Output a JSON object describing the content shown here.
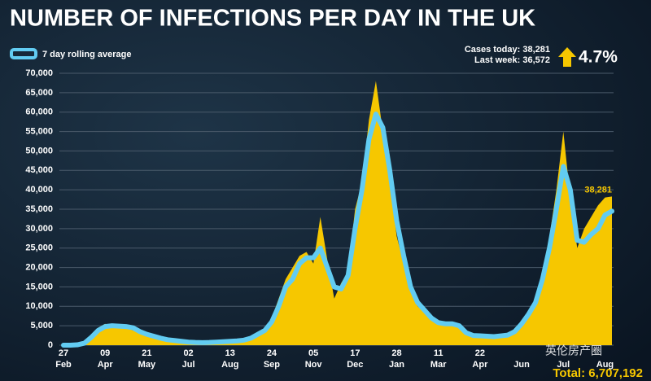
{
  "chart_data": {
    "type": "area-line",
    "title": "NUMBER OF INFECTIONS PER DAY IN THE UK",
    "stats": [
      "Cases today: 38,281",
      "Last week: 36,572"
    ],
    "change": "4.7%",
    "total": "Total: 6,707,192",
    "watermark": "英伦房产圈",
    "categories": [
      {
        "day": "27",
        "month": "Feb"
      },
      null,
      null,
      null,
      null,
      null,
      {
        "day": "09",
        "month": "Apr"
      },
      null,
      null,
      null,
      null,
      null,
      {
        "day": "21",
        "month": "May"
      },
      null,
      null,
      null,
      null,
      null,
      {
        "day": "02",
        "month": "Jul"
      },
      null,
      null,
      null,
      null,
      null,
      {
        "day": "13",
        "month": "Aug"
      },
      null,
      null,
      null,
      null,
      null,
      {
        "day": "24",
        "month": "Sep"
      },
      null,
      null,
      null,
      null,
      null,
      {
        "day": "05",
        "month": "Nov"
      },
      null,
      null,
      null,
      null,
      null,
      {
        "day": "17",
        "month": "Dec"
      },
      null,
      null,
      null,
      null,
      null,
      {
        "day": "28",
        "month": "Jan"
      },
      null,
      null,
      null,
      null,
      null,
      {
        "day": "11",
        "month": "Mar"
      },
      null,
      null,
      null,
      null,
      null,
      {
        "day": "22",
        "month": "Apr"
      },
      null,
      null,
      null,
      null,
      null,
      {
        "month": "Jun"
      },
      null,
      null,
      null,
      null,
      null,
      {
        "month": "Jul"
      },
      null,
      null,
      null,
      null,
      null,
      {
        "month": "Aug"
      },
      null
    ],
    "series": [
      {
        "color": "#f6c700",
        "kind": "area",
        "values": [
          0,
          0,
          150,
          600,
          2500,
          4500,
          5500,
          4800,
          4500,
          4700,
          3800,
          3300,
          2500,
          2200,
          1600,
          1300,
          1100,
          900,
          700,
          650,
          600,
          700,
          800,
          900,
          1100,
          1200,
          1400,
          2000,
          3000,
          4000,
          7000,
          12000,
          17000,
          20000,
          23000,
          24000,
          21000,
          33000,
          22000,
          12000,
          16000,
          19000,
          35000,
          42000,
          58000,
          68000,
          55000,
          42000,
          28000,
          21000,
          14000,
          10000,
          8500,
          6500,
          5500,
          5500,
          5000,
          4500,
          2800,
          2200,
          2300,
          2100,
          2300,
          2500,
          2800,
          4000,
          6000,
          9000,
          12000,
          19000,
          28000,
          40000,
          55000,
          38000,
          25000,
          30000,
          33000,
          36000,
          38000,
          38281
        ],
        "value_labels": [
          null,
          null,
          null,
          null,
          null,
          null,
          null,
          null,
          null,
          null,
          null,
          null,
          null,
          null,
          null,
          null,
          null,
          null,
          null,
          null,
          null,
          null,
          null,
          null,
          null,
          null,
          null,
          null,
          null,
          null,
          null,
          null,
          null,
          null,
          null,
          null,
          null,
          null,
          null,
          null,
          null,
          null,
          null,
          null,
          null,
          null,
          null,
          null,
          null,
          null,
          null,
          null,
          null,
          null,
          null,
          null,
          null,
          null,
          null,
          null,
          null,
          null,
          null,
          null,
          null,
          null,
          null,
          null,
          null,
          null,
          null,
          null,
          null,
          null,
          null,
          null,
          null,
          null,
          null,
          "38,281"
        ]
      },
      {
        "name": "7 day rolling average",
        "color": "#62ccf2",
        "kind": "line",
        "values": [
          0,
          0,
          100,
          500,
          2000,
          3800,
          4800,
          5000,
          4900,
          4800,
          4500,
          3500,
          2800,
          2300,
          1800,
          1400,
          1200,
          1000,
          800,
          700,
          650,
          700,
          800,
          900,
          1000,
          1100,
          1300,
          1800,
          2800,
          3800,
          6000,
          10000,
          15000,
          17000,
          21000,
          22500,
          22500,
          25000,
          20000,
          15000,
          14500,
          18000,
          30000,
          40000,
          53000,
          59500,
          56000,
          45000,
          32000,
          23000,
          15000,
          11000,
          9000,
          7000,
          5800,
          5500,
          5500,
          5000,
          3200,
          2500,
          2400,
          2300,
          2200,
          2400,
          2600,
          3500,
          5500,
          8000,
          11000,
          17000,
          25000,
          35000,
          46000,
          40000,
          27000,
          26500,
          28500,
          30000,
          33500,
          34500
        ]
      }
    ],
    "ylim": [
      0,
      70000
    ],
    "yticks": [
      0,
      {
        "value": 5000,
        "label": "5,000"
      },
      {
        "value": 10000,
        "label": "10,000"
      },
      {
        "value": 15000,
        "label": "15,000"
      },
      {
        "value": 20000,
        "label": "20,000"
      },
      {
        "value": 25000,
        "label": "25,000"
      },
      {
        "value": 30000,
        "label": "30,000"
      },
      {
        "value": 35000,
        "label": "35,000"
      },
      {
        "value": 40000,
        "label": "40,000"
      },
      {
        "value": 45000,
        "label": "45,000"
      },
      {
        "value": 50000,
        "label": "50,000"
      },
      {
        "value": 55000,
        "label": "55,000"
      },
      {
        "value": 60000,
        "label": "60,000"
      },
      {
        "value": 65000,
        "label": "65,000"
      },
      {
        "value": 70000,
        "label": "70,000"
      }
    ],
    "grid": true
  }
}
